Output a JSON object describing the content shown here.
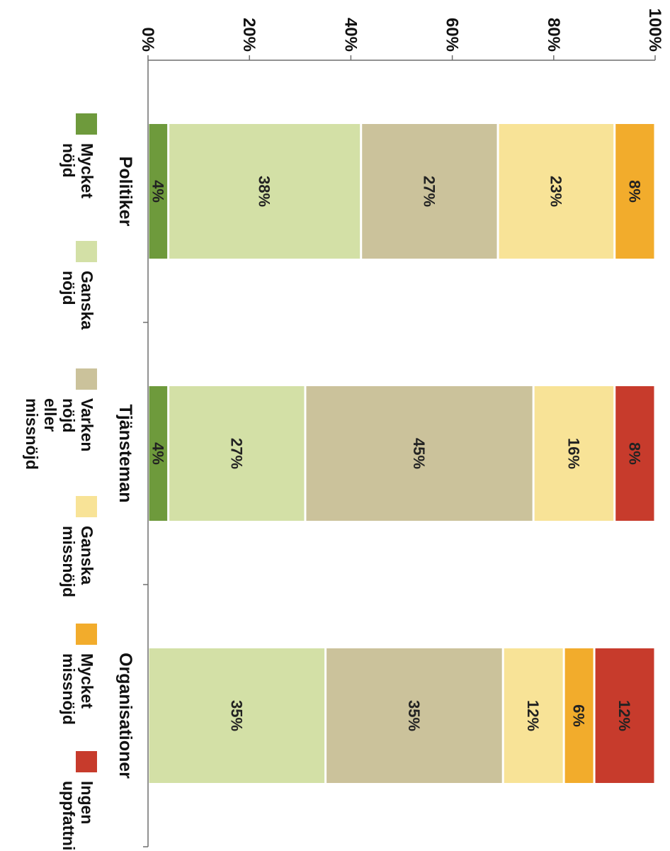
{
  "chart_data": {
    "type": "bar",
    "stacked": true,
    "orientation": "vertical-bars-stacked-to-100-percent",
    "categories": [
      "Politiker",
      "Tjänsteman",
      "Organisationer"
    ],
    "y_tick_labels": [
      "0%",
      "20%",
      "40%",
      "60%",
      "80%",
      "100%"
    ],
    "ylim": [
      0,
      100
    ],
    "grid": false,
    "legend_position": "bottom",
    "series": [
      {
        "name": "Mycket nöjd",
        "color": "#6e9a3c",
        "values": [
          4,
          4,
          0
        ],
        "labels": [
          "4%",
          "4%",
          ""
        ]
      },
      {
        "name": "Ganska nöjd",
        "color": "#d3e0a6",
        "values": [
          38,
          27,
          35
        ],
        "labels": [
          "38%",
          "27%",
          "35%"
        ]
      },
      {
        "name": "Varken nöjd eller missnöjd",
        "color": "#cbc29b",
        "values": [
          27,
          45,
          35
        ],
        "labels": [
          "27%",
          "45%",
          "35%"
        ]
      },
      {
        "name": "Ganska missnöjd",
        "color": "#f8e397",
        "values": [
          23,
          16,
          12
        ],
        "labels": [
          "23%",
          "16%",
          "12%"
        ]
      },
      {
        "name": "Mycket missnöjd",
        "color": "#f2ac2c",
        "values": [
          8,
          0,
          6
        ],
        "labels": [
          "8%",
          "",
          "6%"
        ]
      },
      {
        "name": "Ingen uppfattning",
        "color": "#c73b2c",
        "values": [
          0,
          8,
          12
        ],
        "labels": [
          "",
          "8%",
          "12%"
        ]
      }
    ],
    "legend": [
      {
        "lines": [
          "Mycket",
          "nöjd"
        ],
        "color": "#6e9a3c"
      },
      {
        "lines": [
          "Ganska",
          "nöjd"
        ],
        "color": "#d3e0a6"
      },
      {
        "lines": [
          "Varken",
          "nöjd",
          "eller",
          "missnöjd"
        ],
        "color": "#cbc29b"
      },
      {
        "lines": [
          "Ganska",
          "missnöjd"
        ],
        "color": "#f8e397"
      },
      {
        "lines": [
          "Mycket",
          "missnöjd"
        ],
        "color": "#f2ac2c"
      },
      {
        "lines": [
          "Ingen",
          "uppfattning"
        ],
        "color": "#c73b2c"
      }
    ]
  }
}
